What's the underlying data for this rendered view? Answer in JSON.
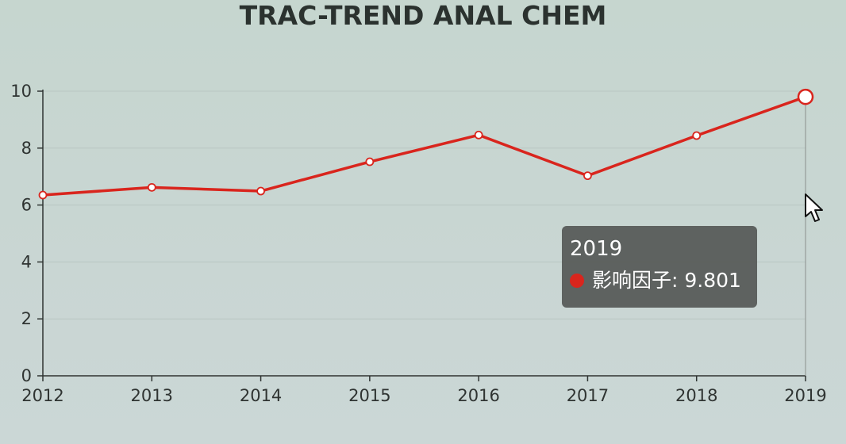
{
  "chart_data": {
    "type": "line",
    "title": "TRAC-TREND ANAL CHEM",
    "x": [
      "2012",
      "2013",
      "2014",
      "2015",
      "2016",
      "2017",
      "2018",
      "2019"
    ],
    "series": [
      {
        "name": "影响因子",
        "values": [
          6.35,
          6.62,
          6.49,
          7.52,
          8.46,
          7.03,
          8.44,
          9.801
        ],
        "color": "#d9251d"
      }
    ],
    "ylim": [
      0,
      10
    ],
    "yticks": [
      "0",
      "2",
      "4",
      "6",
      "8",
      "10"
    ],
    "grid": true,
    "legend": "none"
  },
  "tooltip": {
    "title": "2019",
    "series_label": "影响因子",
    "value": "9.801",
    "text": "影响因子: 9.801",
    "dot_color": "#d9251d"
  },
  "colors": {
    "line": "#d9251d",
    "axis": "#2f3432",
    "grid": "#b9c6c2"
  }
}
